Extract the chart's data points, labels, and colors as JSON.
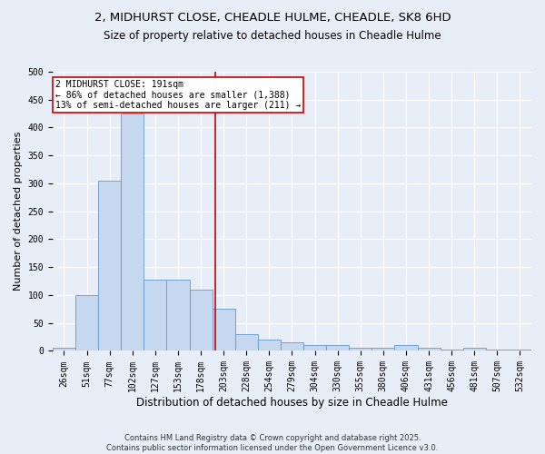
{
  "title": "2, MIDHURST CLOSE, CHEADLE HULME, CHEADLE, SK8 6HD",
  "subtitle": "Size of property relative to detached houses in Cheadle Hulme",
  "xlabel": "Distribution of detached houses by size in Cheadle Hulme",
  "ylabel": "Number of detached properties",
  "bin_labels": [
    "26sqm",
    "51sqm",
    "77sqm",
    "102sqm",
    "127sqm",
    "153sqm",
    "178sqm",
    "203sqm",
    "228sqm",
    "254sqm",
    "279sqm",
    "304sqm",
    "330sqm",
    "355sqm",
    "380sqm",
    "406sqm",
    "431sqm",
    "456sqm",
    "481sqm",
    "507sqm",
    "532sqm"
  ],
  "bar_heights": [
    5,
    100,
    305,
    425,
    128,
    128,
    110,
    75,
    30,
    20,
    15,
    10,
    10,
    5,
    5,
    10,
    5,
    2,
    5,
    2,
    2
  ],
  "bar_color": "#c5d8f0",
  "bar_edge_color": "#6699cc",
  "annotation_label": "2 MIDHURST CLOSE: 191sqm",
  "annotation_line1": "← 86% of detached houses are smaller (1,388)",
  "annotation_line2": "13% of semi-detached houses are larger (211) →",
  "annotation_box_facecolor": "#ffffff",
  "annotation_box_edgecolor": "#cc0000",
  "vline_color": "#cc0000",
  "background_color": "#e8eef8",
  "grid_color": "#ffffff",
  "footer_line1": "Contains HM Land Registry data © Crown copyright and database right 2025.",
  "footer_line2": "Contains public sector information licensed under the Open Government Licence v3.0.",
  "ylim": [
    0,
    500
  ],
  "yticks": [
    0,
    50,
    100,
    150,
    200,
    250,
    300,
    350,
    400,
    450,
    500
  ],
  "vline_xindex": 6.65,
  "title_fontsize": 9.5,
  "subtitle_fontsize": 8.5,
  "xlabel_fontsize": 8.5,
  "ylabel_fontsize": 8,
  "tick_fontsize": 7,
  "footer_fontsize": 6,
  "annotation_fontsize": 7
}
